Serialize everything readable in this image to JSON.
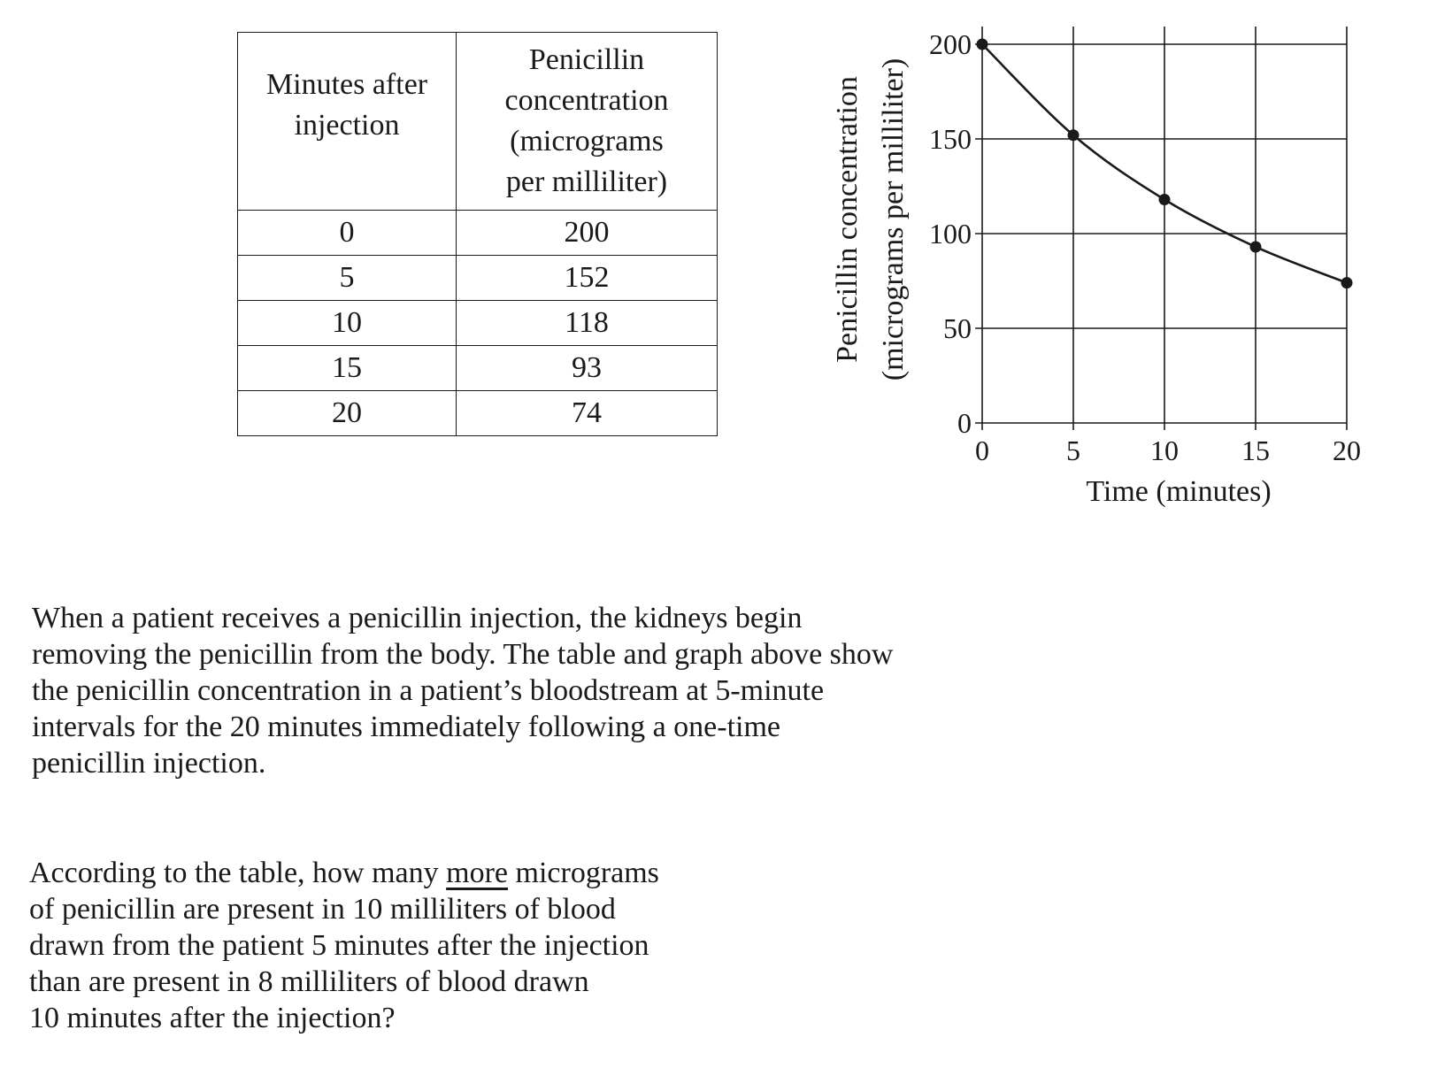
{
  "table": {
    "headers": [
      "Minutes after\ninjection",
      "Penicillin\nconcentration\n(micrograms\nper milliliter)"
    ],
    "rows": [
      [
        "0",
        "200"
      ],
      [
        "5",
        "152"
      ],
      [
        "10",
        "118"
      ],
      [
        "15",
        "93"
      ],
      [
        "20",
        "74"
      ]
    ]
  },
  "chart_data": {
    "type": "line",
    "x": [
      0,
      5,
      10,
      15,
      20
    ],
    "y": [
      200,
      152,
      118,
      93,
      74
    ],
    "xlabel": "Time (minutes)",
    "ylabel_lines": [
      "Penicillin concentration",
      "(micrograms per milliliter)"
    ],
    "xlim": [
      0,
      20
    ],
    "ylim": [
      0,
      200
    ],
    "xticks": [
      0,
      5,
      10,
      15,
      20
    ],
    "yticks": [
      0,
      50,
      100,
      150,
      200
    ],
    "grid": true,
    "markers": true,
    "line_color": "#1a1a1a"
  },
  "text": {
    "intro": "When a patient receives a penicillin injection, the kidneys begin\nremoving the penicillin from the body. The table and graph above show\nthe penicillin concentration in a patient’s bloodstream at 5-minute\nintervals for the 20 minutes immediately following a one-time\npenicillin injection.",
    "question_before": "According to the table, how many ",
    "question_emphasis": "more",
    "question_after": " micrograms\nof penicillin are present in 10 milliliters of blood\ndrawn from the patient 5 minutes after the injection\nthan are present in 8 milliliters of blood drawn\n10 minutes after the injection?"
  }
}
